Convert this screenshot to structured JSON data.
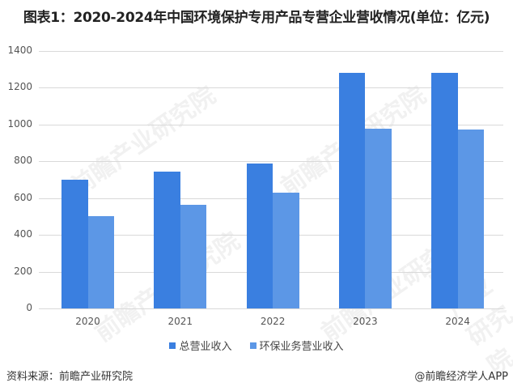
{
  "title": "图表1：2020-2024年中国环境保护专用产品专营企业营收情况(单位：亿元)",
  "source": "资料来源：前瞻产业研究院",
  "credit": "@前瞻经济学人APP",
  "watermark": "前瞻产业研究院",
  "colors": {
    "total": "#3a7fe0",
    "env": "#5c97e6",
    "grid": "#d9d9d9"
  },
  "legend": [
    "总营业收入",
    "环保业务营业收入"
  ],
  "chart_data": {
    "type": "bar",
    "title": "图表1：2020-2024年中国环境保护专用产品专营企业营收情况(单位：亿元)",
    "xlabel": "",
    "ylabel": "亿元",
    "categories": [
      "2020",
      "2021",
      "2022",
      "2023",
      "2024"
    ],
    "series": [
      {
        "name": "总营业收入",
        "values": [
          700,
          743,
          787,
          1283,
          1279
        ]
      },
      {
        "name": "环保业务营业收入",
        "values": [
          500,
          564,
          629,
          976,
          971
        ]
      }
    ],
    "ylim": [
      0,
      1400
    ],
    "yticks": [
      0,
      200,
      400,
      600,
      800,
      1000,
      1200,
      1400
    ],
    "grid": true,
    "legend_position": "bottom"
  }
}
